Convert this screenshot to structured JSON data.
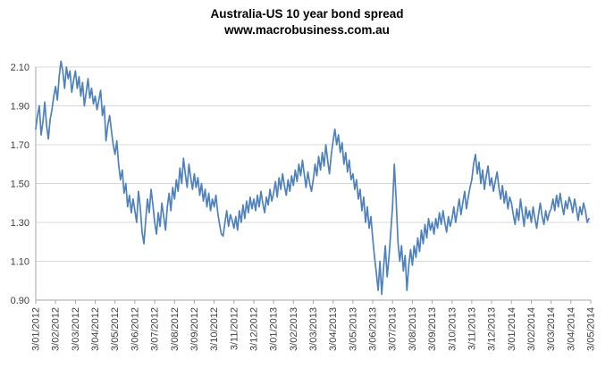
{
  "chart_data": {
    "type": "line",
    "title": "Australia-US 10 year bond spread",
    "subtitle": "www.macrobusiness.com.au",
    "xlabel": "",
    "ylabel": "",
    "ylim": [
      0.9,
      2.1
    ],
    "y_tick_step": 0.2,
    "y_ticks": [
      "0.90",
      "1.10",
      "1.30",
      "1.50",
      "1.70",
      "1.90",
      "2.10"
    ],
    "x_tick_labels": [
      "3/01/2012",
      "3/02/2012",
      "3/03/2012",
      "3/04/2012",
      "3/05/2012",
      "3/06/2012",
      "3/07/2012",
      "3/08/2012",
      "3/09/2012",
      "3/10/2012",
      "3/11/2012",
      "3/12/2012",
      "3/01/2013",
      "3/02/2013",
      "3/03/2013",
      "3/04/2013",
      "3/05/2013",
      "3/06/2013",
      "3/07/2013",
      "3/08/2013",
      "3/09/2013",
      "3/10/2013",
      "3/11/2013",
      "3/12/2013",
      "3/01/2014",
      "3/02/2014",
      "3/03/2014",
      "3/04/2014",
      "3/05/2014"
    ],
    "grid": "horizontal",
    "legend": "none",
    "points_per_month": 11,
    "series": [
      {
        "name": "Australia-US 10 year bond spread",
        "color": "#4F81BD",
        "values": [
          1.78,
          1.85,
          1.9,
          1.75,
          1.82,
          1.92,
          1.8,
          1.73,
          1.83,
          1.88,
          1.95,
          2.0,
          1.93,
          2.05,
          2.13,
          2.08,
          1.99,
          2.1,
          2.04,
          2.08,
          1.97,
          2.03,
          2.08,
          1.99,
          2.05,
          1.95,
          2.02,
          1.9,
          1.97,
          2.04,
          1.94,
          1.99,
          1.91,
          1.95,
          1.88,
          1.93,
          1.98,
          1.85,
          1.9,
          1.72,
          1.8,
          1.85,
          1.77,
          1.7,
          1.65,
          1.72,
          1.6,
          1.52,
          1.57,
          1.45,
          1.5,
          1.38,
          1.44,
          1.35,
          1.42,
          1.36,
          1.3,
          1.46,
          1.38,
          1.25,
          1.19,
          1.31,
          1.42,
          1.35,
          1.47,
          1.39,
          1.3,
          1.24,
          1.35,
          1.28,
          1.4,
          1.33,
          1.26,
          1.38,
          1.45,
          1.36,
          1.48,
          1.42,
          1.52,
          1.46,
          1.58,
          1.5,
          1.63,
          1.55,
          1.48,
          1.6,
          1.53,
          1.47,
          1.55,
          1.48,
          1.53,
          1.44,
          1.5,
          1.41,
          1.47,
          1.38,
          1.45,
          1.36,
          1.42,
          1.38,
          1.44,
          1.35,
          1.29,
          1.24,
          1.23,
          1.3,
          1.36,
          1.28,
          1.34,
          1.31,
          1.27,
          1.33,
          1.26,
          1.36,
          1.3,
          1.39,
          1.32,
          1.41,
          1.35,
          1.43,
          1.37,
          1.42,
          1.36,
          1.44,
          1.38,
          1.46,
          1.4,
          1.35,
          1.43,
          1.39,
          1.47,
          1.41,
          1.45,
          1.51,
          1.43,
          1.53,
          1.47,
          1.55,
          1.49,
          1.44,
          1.52,
          1.46,
          1.54,
          1.49,
          1.57,
          1.51,
          1.6,
          1.54,
          1.62,
          1.55,
          1.48,
          1.56,
          1.5,
          1.46,
          1.52,
          1.6,
          1.54,
          1.64,
          1.57,
          1.66,
          1.59,
          1.7,
          1.62,
          1.55,
          1.65,
          1.72,
          1.78,
          1.7,
          1.75,
          1.66,
          1.71,
          1.6,
          1.66,
          1.56,
          1.62,
          1.52,
          1.55,
          1.47,
          1.52,
          1.42,
          1.47,
          1.36,
          1.43,
          1.3,
          1.38,
          1.27,
          1.33,
          1.22,
          1.12,
          1.04,
          0.95,
          1.1,
          0.93,
          1.06,
          1.18,
          1.02,
          1.12,
          1.25,
          1.38,
          1.6,
          1.42,
          1.2,
          1.1,
          1.18,
          1.05,
          1.13,
          0.95,
          1.08,
          1.16,
          1.08,
          1.18,
          1.12,
          1.22,
          1.15,
          1.26,
          1.19,
          1.29,
          1.22,
          1.32,
          1.26,
          1.3,
          1.24,
          1.32,
          1.27,
          1.35,
          1.29,
          1.36,
          1.3,
          1.25,
          1.33,
          1.28,
          1.32,
          1.38,
          1.3,
          1.36,
          1.42,
          1.34,
          1.4,
          1.46,
          1.37,
          1.43,
          1.48,
          1.52,
          1.6,
          1.65,
          1.55,
          1.61,
          1.5,
          1.57,
          1.47,
          1.54,
          1.59,
          1.49,
          1.53,
          1.46,
          1.51,
          1.56,
          1.48,
          1.42,
          1.49,
          1.4,
          1.46,
          1.37,
          1.43,
          1.4,
          1.34,
          1.29,
          1.37,
          1.31,
          1.42,
          1.35,
          1.28,
          1.38,
          1.32,
          1.36,
          1.3,
          1.38,
          1.32,
          1.27,
          1.34,
          1.4,
          1.33,
          1.29,
          1.36,
          1.31,
          1.35,
          1.37,
          1.42,
          1.36,
          1.44,
          1.38,
          1.45,
          1.39,
          1.34,
          1.41,
          1.37,
          1.43,
          1.4,
          1.35,
          1.42,
          1.37,
          1.31,
          1.38,
          1.34,
          1.4,
          1.36,
          1.3,
          1.32
        ]
      }
    ],
    "colors": {
      "line": "#4F81BD",
      "gridline": "#D9D9D9",
      "axis": "#A6A6A6",
      "tick_text": "#404040",
      "title_text": "#000000",
      "background": "#FFFFFF"
    }
  }
}
